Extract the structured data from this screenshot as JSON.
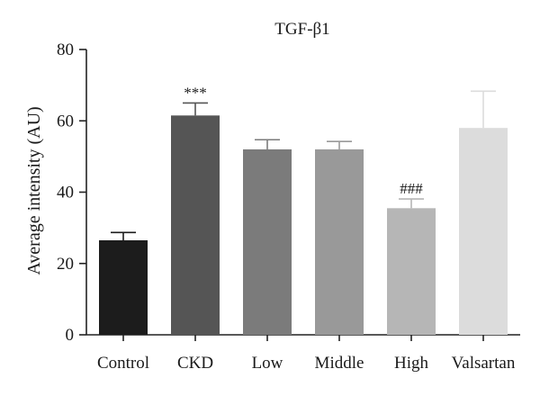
{
  "chart_data": {
    "type": "bar",
    "title": "TGF-β1",
    "xlabel": "",
    "ylabel": "Average intensity (AU)",
    "ylim": [
      0,
      80
    ],
    "yticks": [
      0,
      20,
      40,
      60,
      80
    ],
    "grid": false,
    "categories": [
      "Control",
      "CKD",
      "Low",
      "Middle",
      "High",
      "Valsartan"
    ],
    "values": [
      26.5,
      61.5,
      52,
      52,
      35.5,
      58
    ],
    "errors": [
      2.2,
      3.5,
      2.7,
      2.2,
      2.6,
      10.3
    ],
    "annotations": [
      "",
      "***",
      "",
      "",
      "###",
      ""
    ],
    "colors": [
      "#1c1c1c",
      "#555555",
      "#7b7b7b",
      "#999999",
      "#b6b6b6",
      "#dcdcdc"
    ]
  }
}
